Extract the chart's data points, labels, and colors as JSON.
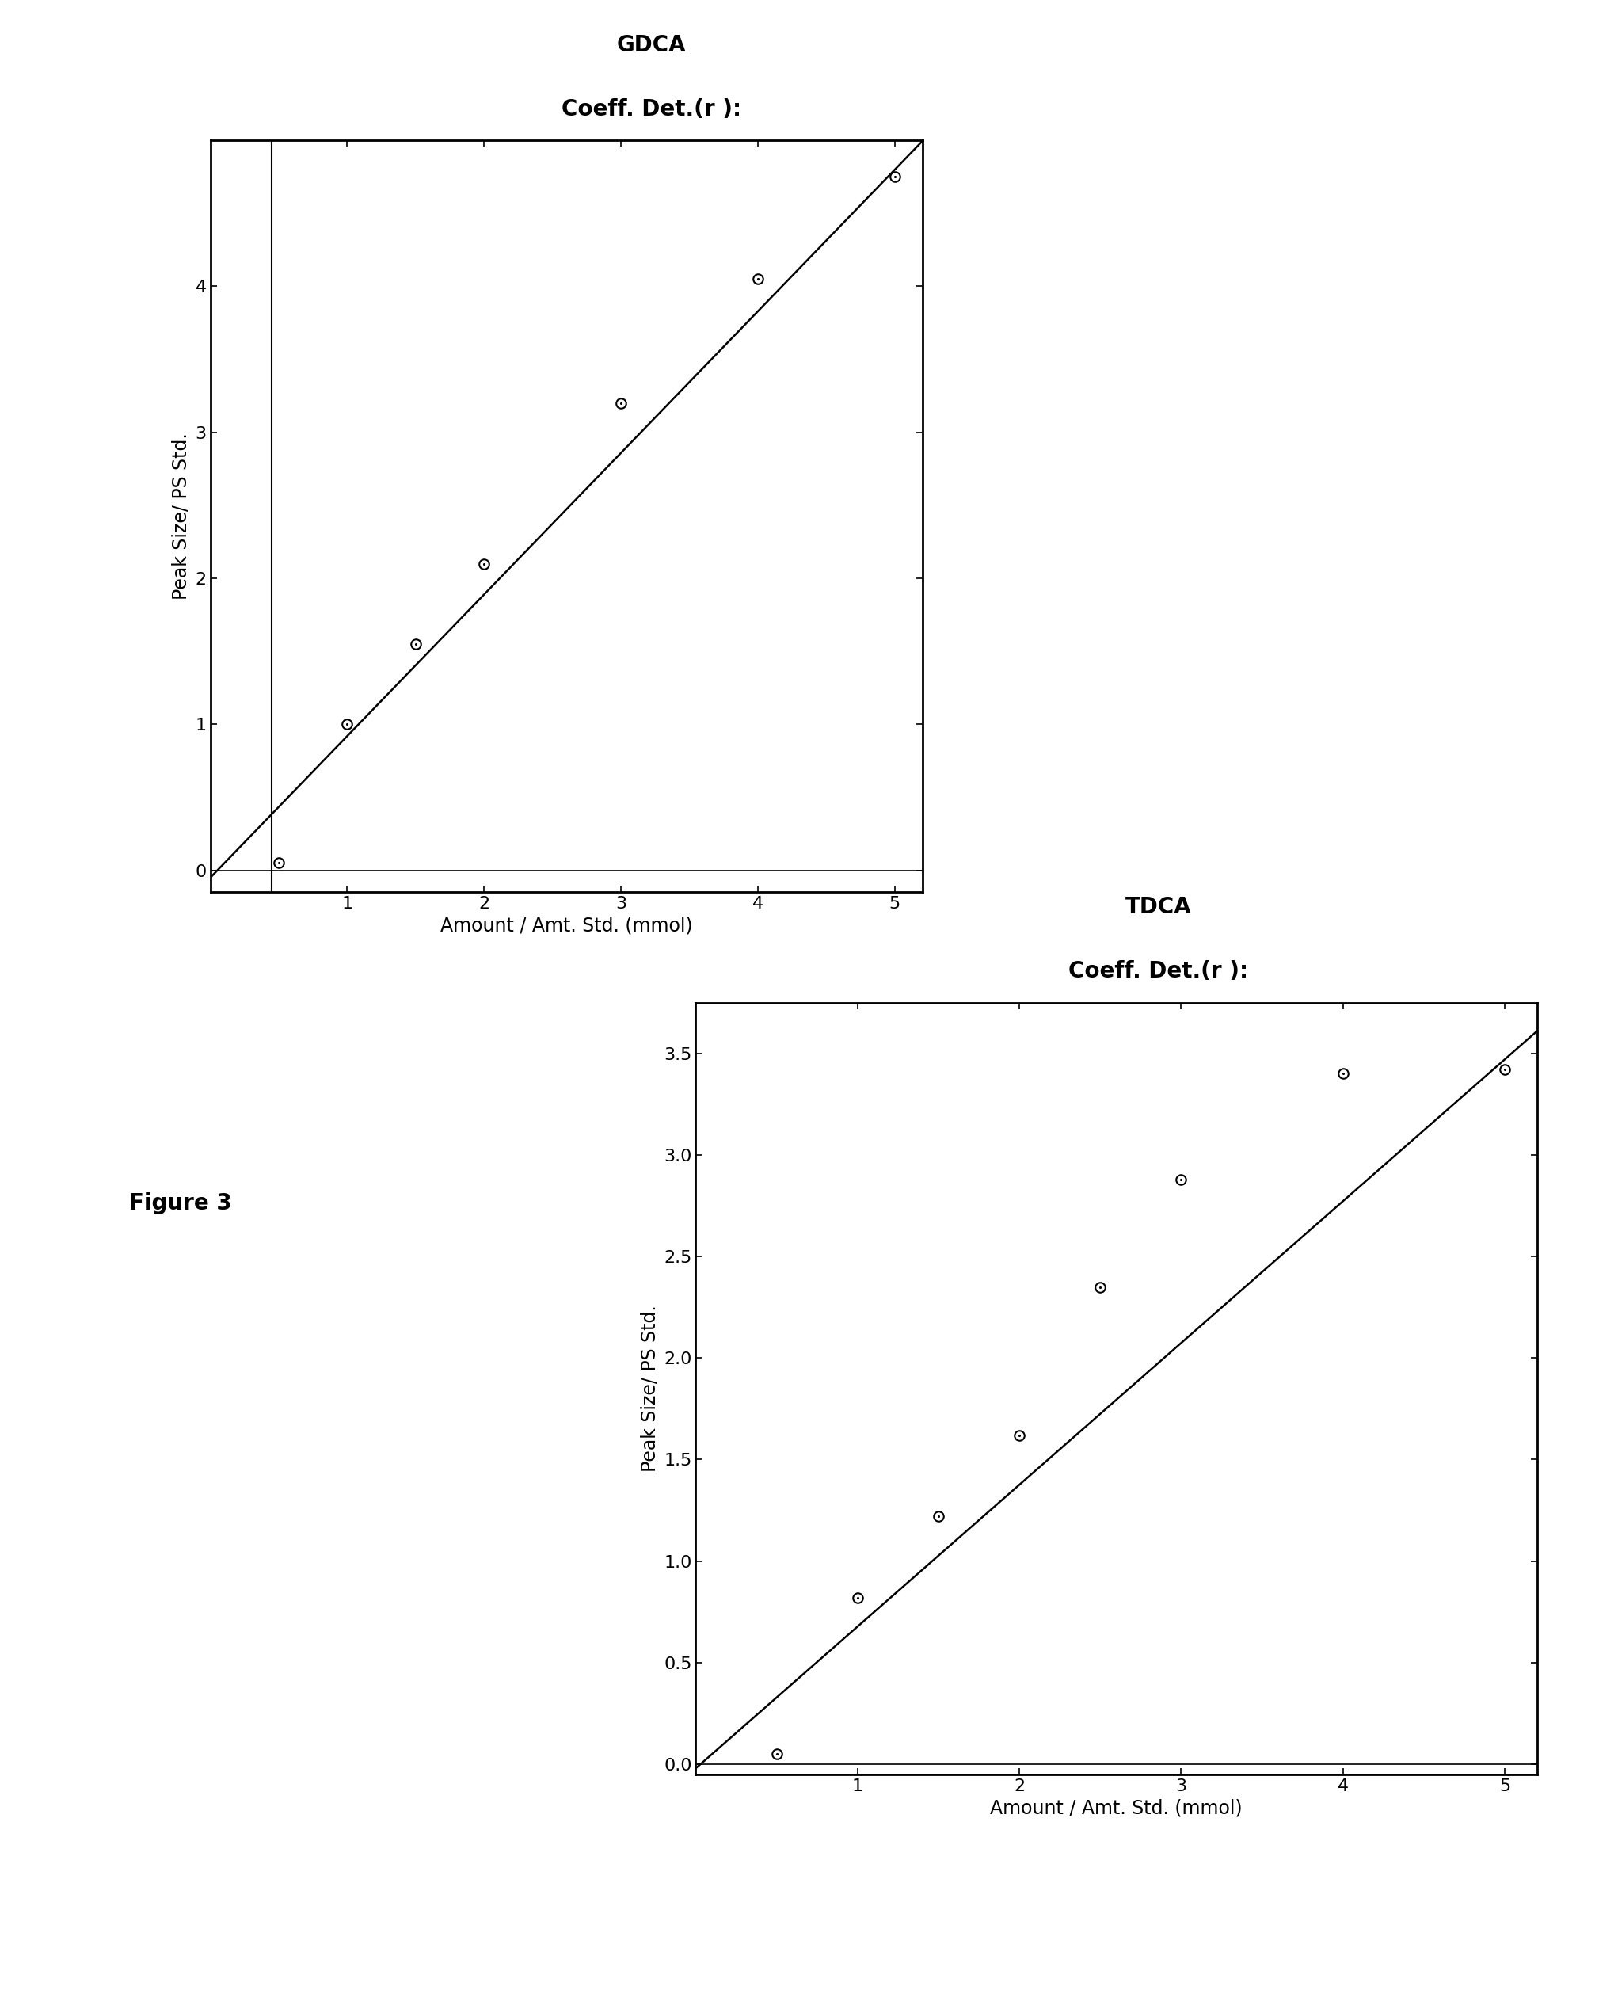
{
  "gdca": {
    "title_line1": "GDCA",
    "title_line2": "Coeff. Det.(r ):",
    "x_data": [
      0.5,
      1.0,
      1.5,
      2.0,
      3.0,
      4.0,
      5.0
    ],
    "y_data": [
      0.05,
      1.0,
      1.55,
      2.1,
      3.2,
      4.05,
      4.75
    ],
    "slope": 0.97,
    "intercept": -0.05,
    "vline_x": 0.5,
    "xlim": [
      0,
      5.2
    ],
    "ylim": [
      -0.15,
      5.0
    ],
    "xticks": [
      1,
      2,
      3,
      4,
      5
    ],
    "yticks": [
      0,
      1,
      2,
      3,
      4
    ],
    "xlabel": "Amount / Amt. Std. (mmol)",
    "ylabel": "Peak Size/ PS Std."
  },
  "tdca": {
    "title_line1": "TDCA",
    "title_line2": "Coeff. Det.(r ):",
    "x_data": [
      0.5,
      1.0,
      1.5,
      2.0,
      2.5,
      3.0,
      4.0,
      5.0
    ],
    "y_data": [
      0.05,
      0.82,
      1.22,
      1.62,
      2.35,
      2.88,
      3.4,
      3.42
    ],
    "slope": 0.698,
    "intercept": -0.02,
    "xlim": [
      0,
      5.2
    ],
    "ylim": [
      -0.05,
      3.75
    ],
    "xticks": [
      1,
      2,
      3,
      4,
      5
    ],
    "yticks": [
      0.0,
      0.5,
      1.0,
      1.5,
      2.0,
      2.5,
      3.0,
      3.5
    ],
    "xlabel": "Amount / Amt. Std. (mmol)",
    "ylabel": "Peak Size/ PS Std."
  },
  "figure_label": "Figure 3",
  "bg_color": "#ffffff",
  "marker_color": "black",
  "line_color": "black",
  "marker_size": 9,
  "title_fontsize": 20,
  "label_fontsize": 17,
  "tick_fontsize": 16,
  "figure_label_fontsize": 20
}
